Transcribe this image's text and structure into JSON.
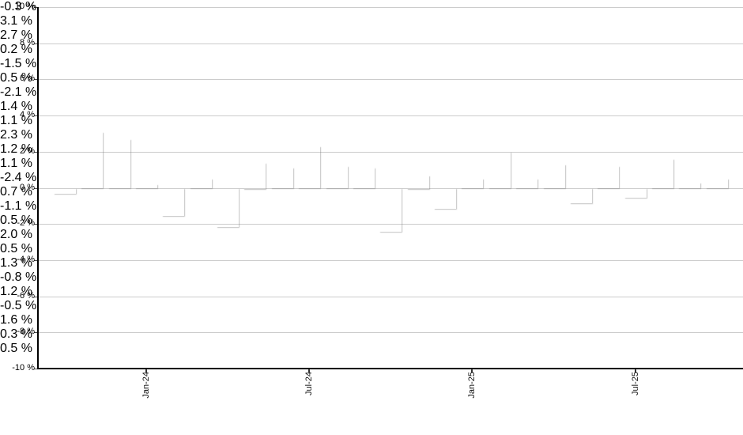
{
  "chart": {
    "background_color": "#ffffff",
    "grid_color": "#cccccc",
    "axis_color": "#000000",
    "label_color": "#000000",
    "positive_bar_color": "#7b97c7",
    "negative_bar_color": "#b24463"
  },
  "chart_data": {
    "type": "bar",
    "title": "",
    "xlabel": "",
    "ylabel": "",
    "ylim": [
      -10,
      10
    ],
    "y_tick_step": 2,
    "grid": true,
    "legend": "none",
    "y_tick_labels": [
      "10 %",
      "8 %",
      "6 %",
      "4 %",
      "2 %",
      "0 %",
      "-2 %",
      "-4 %",
      "-6 %",
      "-8 %",
      "-10 %"
    ],
    "x_ticks": [
      {
        "bar_index": 3,
        "label": "Jan-24"
      },
      {
        "bar_index": 9,
        "label": "Jul-24"
      },
      {
        "bar_index": 15,
        "label": "Jan-25"
      },
      {
        "bar_index": 21,
        "label": "Jul-25"
      }
    ],
    "values": [
      -0.3,
      3.1,
      2.7,
      0.2,
      -1.5,
      0.5,
      -2.1,
      1.4,
      1.1,
      2.3,
      1.2,
      1.1,
      -2.4,
      0.7,
      -1.1,
      0.5,
      2.0,
      0.5,
      1.3,
      -0.8,
      1.2,
      -0.5,
      1.6,
      0.3,
      0.5
    ],
    "value_labels": [
      "-0.3 %",
      "3.1 %",
      "2.7 %",
      "0.2 %",
      "-1.5 %",
      "0.5 %",
      "-2.1 %",
      "1.4 %",
      "1.1 %",
      "2.3 %",
      "1.2 %",
      "1.1 %",
      "-2.4 %",
      "0.7 %",
      "-1.1 %",
      "0.5 %",
      "2.0 %",
      "0.5 %",
      "1.3 %",
      "-0.8 %",
      "1.2 %",
      "-0.5 %",
      "1.6 %",
      "0.3 %",
      "0.5 %"
    ]
  }
}
